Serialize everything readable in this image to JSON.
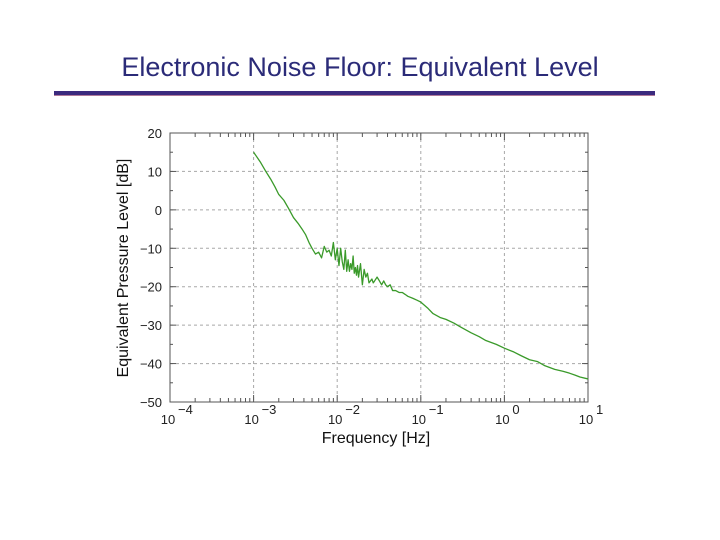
{
  "slide": {
    "title": "Electronic Noise Floor: Equivalent Level"
  },
  "chart_data": {
    "type": "line",
    "xlabel": "Frequency [Hz]",
    "ylabel": "Equivalent Pressure Level [dB]",
    "xscale": "log",
    "xlim": [
      0.0001,
      10
    ],
    "ylim": [
      -50,
      20
    ],
    "grid": true,
    "x_ticks": [
      {
        "value": 0.0001,
        "base": "10",
        "exp": "−4"
      },
      {
        "value": 0.001,
        "base": "10",
        "exp": "−3"
      },
      {
        "value": 0.01,
        "base": "10",
        "exp": "−2"
      },
      {
        "value": 0.1,
        "base": "10",
        "exp": "−1"
      },
      {
        "value": 1,
        "base": "10",
        "exp": "0"
      },
      {
        "value": 10,
        "base": "10",
        "exp": "1"
      }
    ],
    "y_ticks": [
      {
        "value": 20,
        "label": "20"
      },
      {
        "value": 10,
        "label": "10"
      },
      {
        "value": 0,
        "label": "0"
      },
      {
        "value": -10,
        "label": "−10"
      },
      {
        "value": -20,
        "label": "−20"
      },
      {
        "value": -30,
        "label": "−30"
      },
      {
        "value": -40,
        "label": "−40"
      },
      {
        "value": -50,
        "label": "−50"
      }
    ],
    "series": [
      {
        "color": "#3a9a2a",
        "x": [
          0.001,
          0.0012,
          0.0014,
          0.0016,
          0.0018,
          0.002,
          0.0023,
          0.0026,
          0.003,
          0.0034,
          0.0038,
          0.0042,
          0.0046,
          0.005,
          0.0055,
          0.006,
          0.0065,
          0.007,
          0.0075,
          0.008,
          0.0085,
          0.009,
          0.0095,
          0.01,
          0.0105,
          0.011,
          0.0115,
          0.012,
          0.0125,
          0.013,
          0.0135,
          0.014,
          0.0145,
          0.015,
          0.0155,
          0.016,
          0.0165,
          0.017,
          0.0175,
          0.018,
          0.019,
          0.02,
          0.021,
          0.022,
          0.023,
          0.024,
          0.025,
          0.026,
          0.027,
          0.028,
          0.03,
          0.032,
          0.034,
          0.036,
          0.038,
          0.04,
          0.043,
          0.046,
          0.05,
          0.055,
          0.06,
          0.065,
          0.07,
          0.08,
          0.09,
          0.1,
          0.12,
          0.14,
          0.17,
          0.2,
          0.25,
          0.3,
          0.4,
          0.5,
          0.6,
          0.8,
          1.0,
          1.3,
          1.6,
          2.0,
          2.5,
          3.0,
          4.0,
          5.0,
          6.0,
          7.0,
          8.0,
          10.0
        ],
        "y": [
          15,
          12.5,
          10,
          8,
          6,
          4,
          2.5,
          0.5,
          -2,
          -3.5,
          -5,
          -6.5,
          -8.5,
          -10,
          -11.5,
          -11,
          -12.5,
          -9.5,
          -11,
          -10.5,
          -12,
          -8.5,
          -13,
          -10,
          -14.5,
          -10,
          -13.5,
          -15.5,
          -10.5,
          -16,
          -13,
          -16,
          -14,
          -15.5,
          -12,
          -16.5,
          -15,
          -17,
          -14.5,
          -17.5,
          -14,
          -19.5,
          -15.5,
          -17.5,
          -16.5,
          -19,
          -18.5,
          -18,
          -19,
          -18.5,
          -17.5,
          -18.5,
          -19.5,
          -18.5,
          -19.5,
          -20,
          -19.5,
          -21,
          -21,
          -21.5,
          -21.5,
          -22,
          -22.5,
          -23,
          -23.5,
          -24,
          -25.5,
          -27,
          -28,
          -28.5,
          -29.5,
          -30.5,
          -32,
          -33,
          -34,
          -35,
          -36,
          -37,
          -38,
          -39,
          -39.5,
          -40.5,
          -41.5,
          -42,
          -42.5,
          -43,
          -43.5,
          -44
        ]
      }
    ]
  }
}
